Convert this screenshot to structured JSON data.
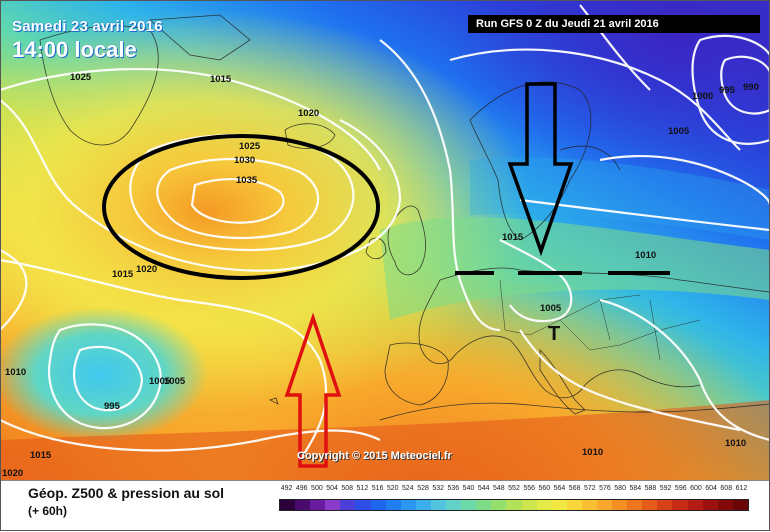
{
  "header": {
    "date": "Samedi 23 avril 2016",
    "time": "14:00 locale",
    "run": "Run GFS 0 Z du Jeudi 21 avril 2016"
  },
  "copyright": "Copyright © 2015 Meteociel.fr",
  "legend": {
    "title": "Géop. Z500 & pression au sol",
    "subtitle": "(+ 60h)",
    "scale_labels": [
      "492",
      "496",
      "500",
      "504",
      "508",
      "512",
      "516",
      "520",
      "524",
      "528",
      "532",
      "536",
      "540",
      "544",
      "548",
      "552",
      "556",
      "560",
      "564",
      "568",
      "572",
      "576",
      "580",
      "584",
      "588",
      "592",
      "596",
      "600",
      "604",
      "608",
      "612"
    ],
    "scale_colors": [
      "#2b003a",
      "#4b0a6e",
      "#6a1ba0",
      "#8a3bc9",
      "#4b3fd8",
      "#2d4fe8",
      "#1e66f0",
      "#1f7ef2",
      "#2a97f0",
      "#3cb0ec",
      "#52c4e0",
      "#62d2c8",
      "#6ed9a8",
      "#7ddc88",
      "#95df6c",
      "#b2e25a",
      "#cde64e",
      "#e4ea46",
      "#f2e844",
      "#f8d63c",
      "#f9c034",
      "#f8a82c",
      "#f48f24",
      "#ee761e",
      "#e45b1a",
      "#d84218",
      "#c82c16",
      "#b41c14",
      "#9c1010",
      "#840a0a",
      "#6a0606"
    ]
  },
  "map": {
    "isobars": [
      {
        "text": "1025"
      },
      {
        "text": "1015"
      },
      {
        "text": "1020"
      },
      {
        "text": "1025"
      },
      {
        "text": "1030"
      },
      {
        "text": "1035"
      },
      {
        "text": "1015"
      },
      {
        "text": "1020"
      },
      {
        "text": "1010"
      },
      {
        "text": "1005"
      },
      {
        "text": "1005"
      },
      {
        "text": "995"
      },
      {
        "text": "1015"
      },
      {
        "text": "1020"
      },
      {
        "text": "1015"
      },
      {
        "text": "1005"
      },
      {
        "text": "1010"
      },
      {
        "text": "1000"
      },
      {
        "text": "995"
      },
      {
        "text": "990"
      },
      {
        "text": "1005"
      },
      {
        "text": "1010"
      },
      {
        "text": "1010"
      }
    ],
    "low_marker": "T",
    "colors": {
      "annotation_black": "#000000",
      "annotation_red": "#e01010",
      "isobar": "#ffffff"
    }
  }
}
